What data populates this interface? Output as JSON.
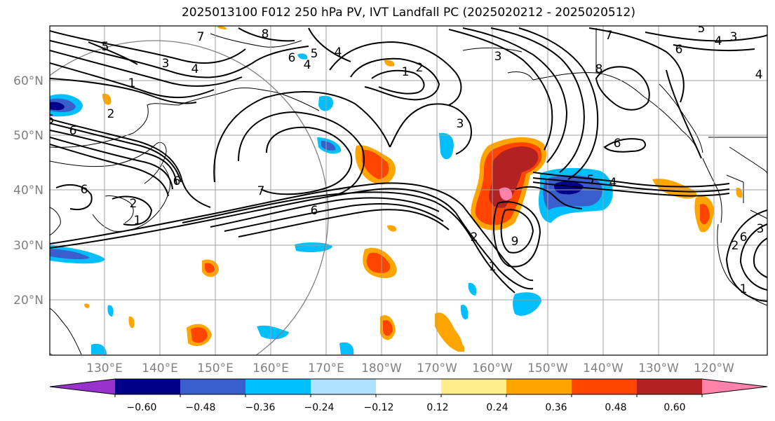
{
  "title": "2025013100 F012 250 hPa PV, IVT Landfall PC (2025020212 - 2025020512)",
  "lat_labels": [
    "60°N",
    "50°N",
    "40°N",
    "30°N",
    "20°N"
  ],
  "lon_labels": [
    "130°E",
    "140°E",
    "150°E",
    "160°E",
    "170°E",
    "180°W",
    "170°W",
    "160°W",
    "150°W",
    "140°W",
    "130°W",
    "120°W"
  ],
  "colorbar": {
    "colors": [
      "#9932CC",
      "#00008B",
      "#3A5FCD",
      "#00BFFF",
      "#B0E2FF",
      "#FFFFFF",
      "#FFEC8B",
      "#FFA500",
      "#FF4500",
      "#B22222",
      "#FF82AB"
    ],
    "tick_labels": [
      "−0.60",
      "−0.48",
      "−0.36",
      "−0.24",
      "−0.12",
      "0.12",
      "0.24",
      "0.36",
      "0.48",
      "0.60"
    ],
    "extend": "both"
  },
  "contour_labels": [
    "5",
    "3",
    "4",
    "1",
    "2",
    "6",
    "5",
    "8",
    "5",
    "6",
    "4",
    "4",
    "3",
    "2",
    "1",
    "7",
    "5",
    "4",
    "3",
    "6",
    "8",
    "7",
    "6",
    "4",
    "6",
    "7",
    "6",
    "3",
    "6",
    "2",
    "1",
    "2",
    "9",
    "1",
    "5",
    "4",
    "6",
    "2",
    "3",
    "1"
  ],
  "colors": {
    "contour": "#000000",
    "grid": "#A0A0A0",
    "axis_label": "#808080",
    "circle": "#808080"
  }
}
